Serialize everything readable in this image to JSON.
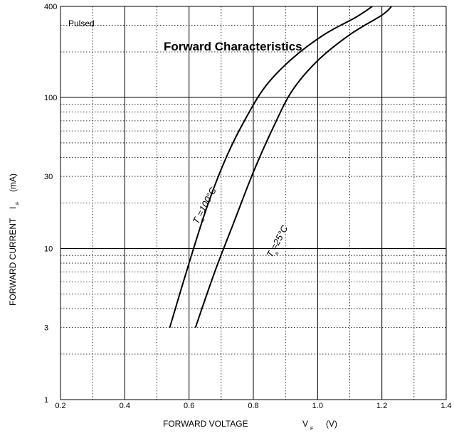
{
  "chart_data": {
    "type": "line",
    "title": "Forward Characteristics",
    "note": "Pulsed",
    "xlabel": {
      "main": "FORWARD VOLTAGE",
      "symbol": "V",
      "subscript": "F",
      "unit": "(V)"
    },
    "ylabel": {
      "main": "FORWARD CURRENT",
      "symbol": "I",
      "subscript": "F",
      "unit": "(mA)"
    },
    "xlim": [
      0.2,
      1.4
    ],
    "x_ticks": [
      "0.2",
      "0.4",
      "0.6",
      "0.8",
      "1.0",
      "1.2",
      "1.4"
    ],
    "y_scale": "log",
    "ylim": [
      1,
      400
    ],
    "y_ticks": [
      "1",
      "3",
      "10",
      "30",
      "100",
      "400"
    ],
    "grid": true,
    "series": [
      {
        "name_main": "T",
        "name_sub": "a",
        "name_rest": "=100°C",
        "points": [
          [
            0.54,
            3
          ],
          [
            0.6,
            8
          ],
          [
            0.66,
            20
          ],
          [
            0.72,
            42
          ],
          [
            0.78,
            75
          ],
          [
            0.84,
            120
          ],
          [
            0.92,
            180
          ],
          [
            1.02,
            260
          ],
          [
            1.12,
            340
          ],
          [
            1.17,
            400
          ]
        ]
      },
      {
        "name_main": "T",
        "name_sub": "a",
        "name_rest": "=25°C",
        "points": [
          [
            0.62,
            3
          ],
          [
            0.68,
            7
          ],
          [
            0.74,
            15
          ],
          [
            0.8,
            32
          ],
          [
            0.86,
            62
          ],
          [
            0.92,
            110
          ],
          [
            1.0,
            175
          ],
          [
            1.1,
            260
          ],
          [
            1.2,
            350
          ],
          [
            1.23,
            400
          ]
        ]
      }
    ]
  }
}
